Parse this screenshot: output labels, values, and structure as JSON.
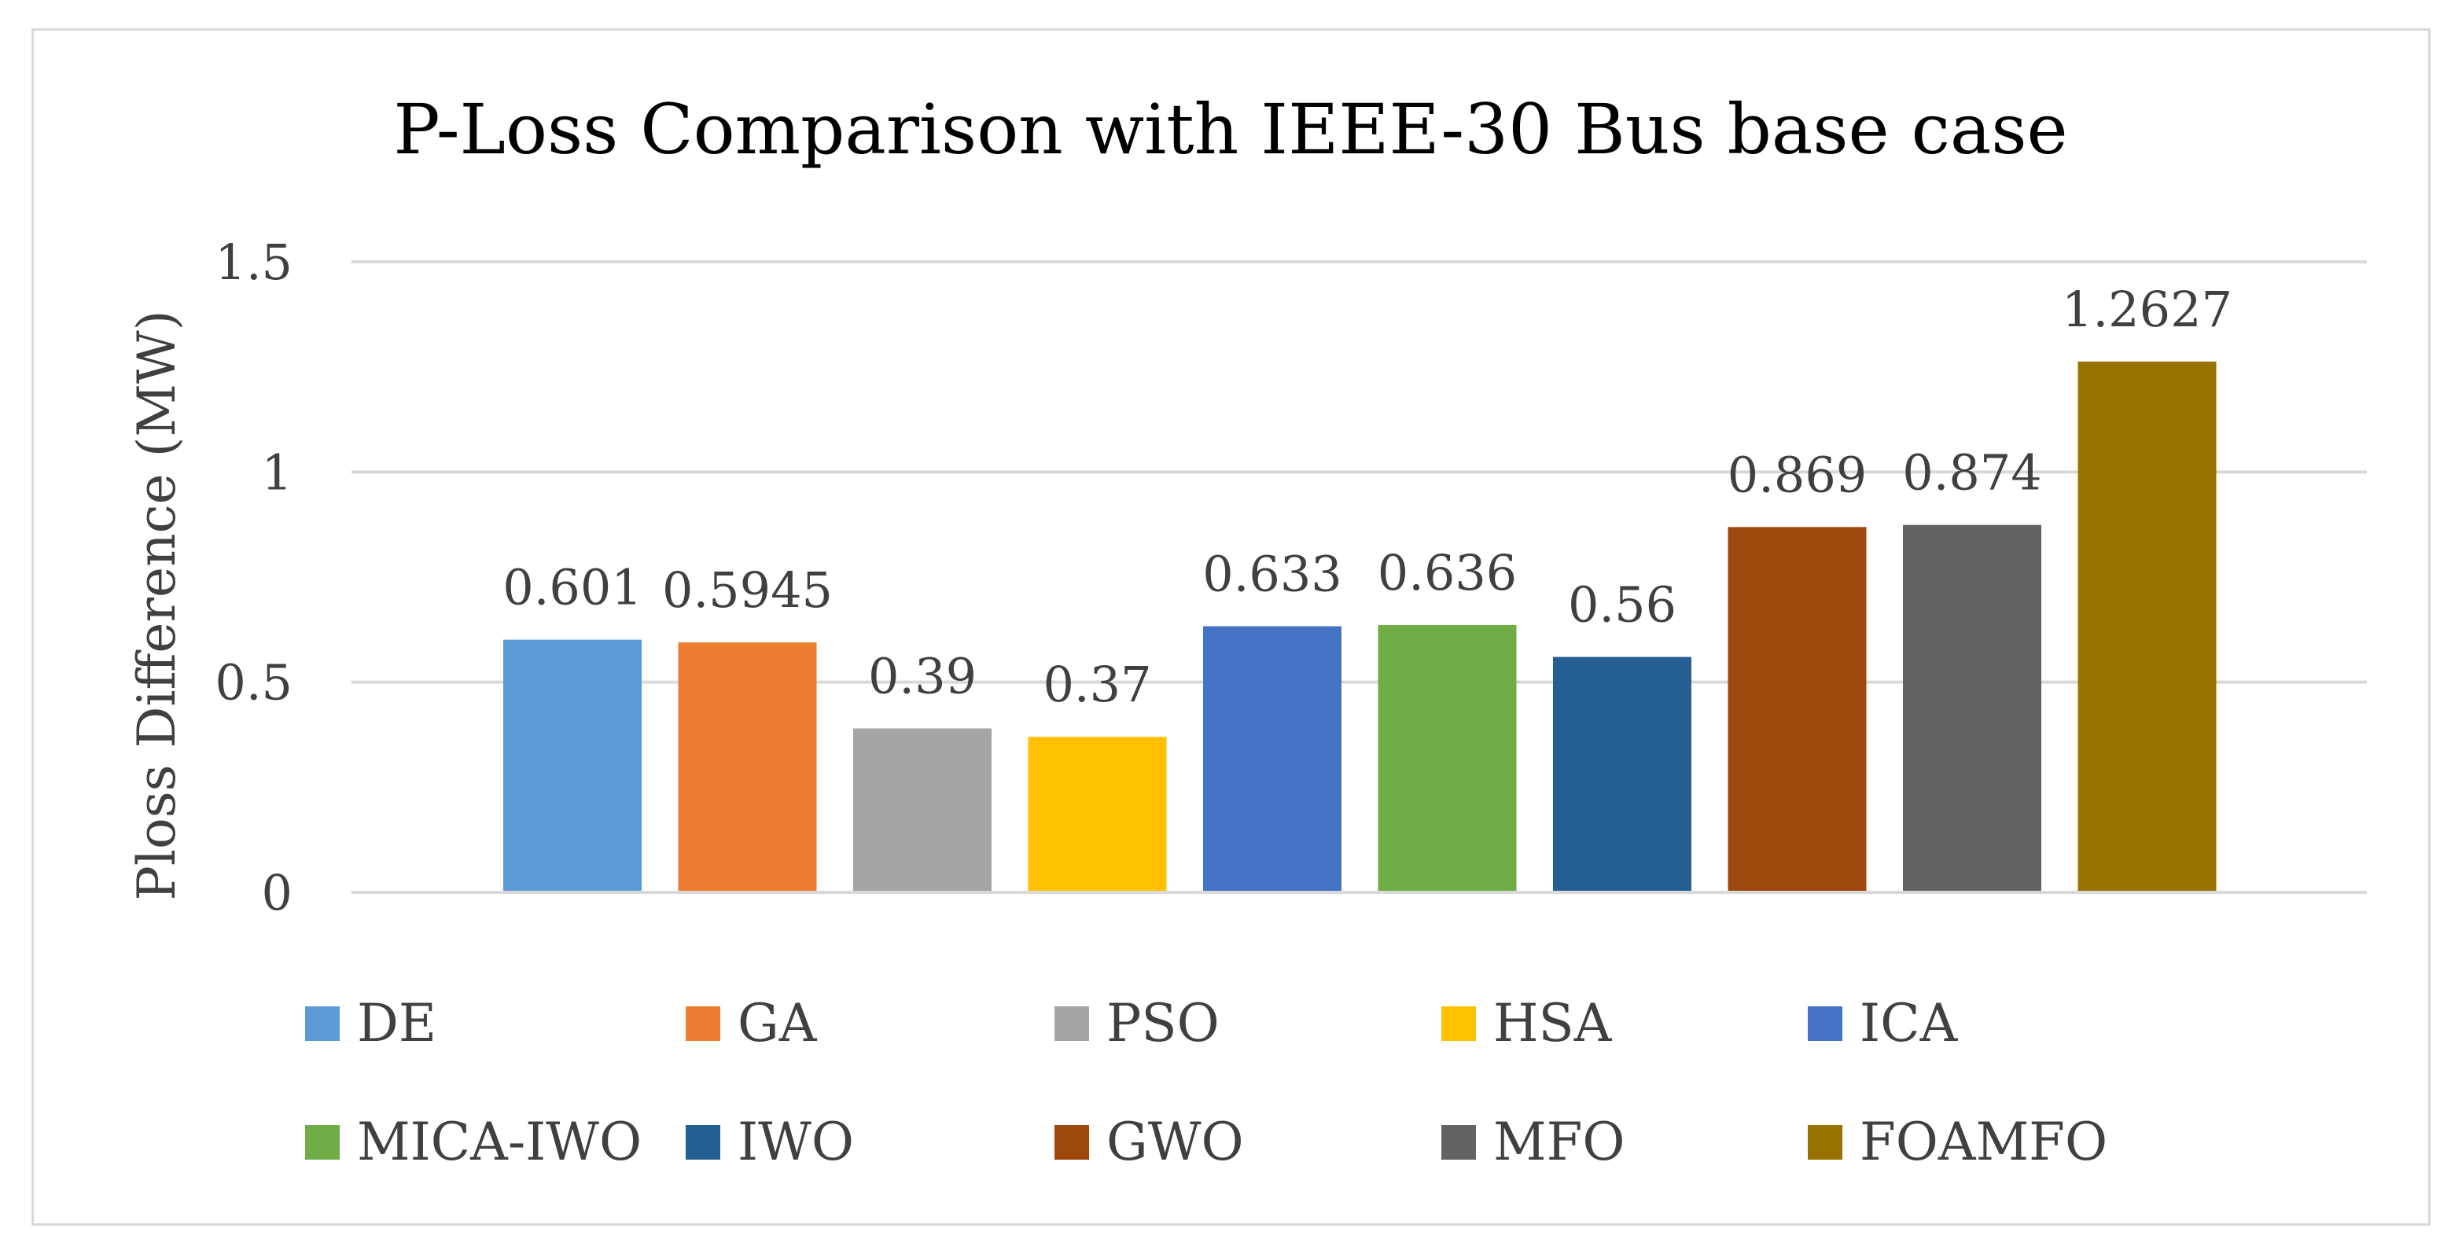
{
  "chart_data": {
    "type": "bar",
    "title": "P-Loss Comparison with IEEE-30 Bus base case",
    "xlabel": "",
    "ylabel": "Ploss Difference (MW)",
    "ylim": [
      0,
      1.5
    ],
    "yticks": [
      0,
      0.5,
      1,
      1.5
    ],
    "ytick_labels": [
      "0",
      "0.5",
      "1",
      "1.5"
    ],
    "grid": true,
    "legend_position": "bottom",
    "series": [
      {
        "name": "DE",
        "value": 0.601,
        "label": "0.601",
        "color": "#5b9bd5"
      },
      {
        "name": "GA",
        "value": 0.5945,
        "label": "0.5945",
        "color": "#ed7d31"
      },
      {
        "name": "PSO",
        "value": 0.39,
        "label": "0.39",
        "color": "#a5a5a5"
      },
      {
        "name": "HSA",
        "value": 0.37,
        "label": "0.37",
        "color": "#ffc000"
      },
      {
        "name": "ICA",
        "value": 0.633,
        "label": "0.633",
        "color": "#4472c4"
      },
      {
        "name": "MICA-IWO",
        "value": 0.636,
        "label": "0.636",
        "color": "#70ad47"
      },
      {
        "name": "IWO",
        "value": 0.56,
        "label": "0.56",
        "color": "#255e91"
      },
      {
        "name": "GWO",
        "value": 0.869,
        "label": "0.869",
        "color": "#9e480e"
      },
      {
        "name": "MFO",
        "value": 0.874,
        "label": "0.874",
        "color": "#636363"
      },
      {
        "name": "FOAMFO",
        "value": 1.2627,
        "label": "1.2627",
        "color": "#997300"
      }
    ]
  }
}
